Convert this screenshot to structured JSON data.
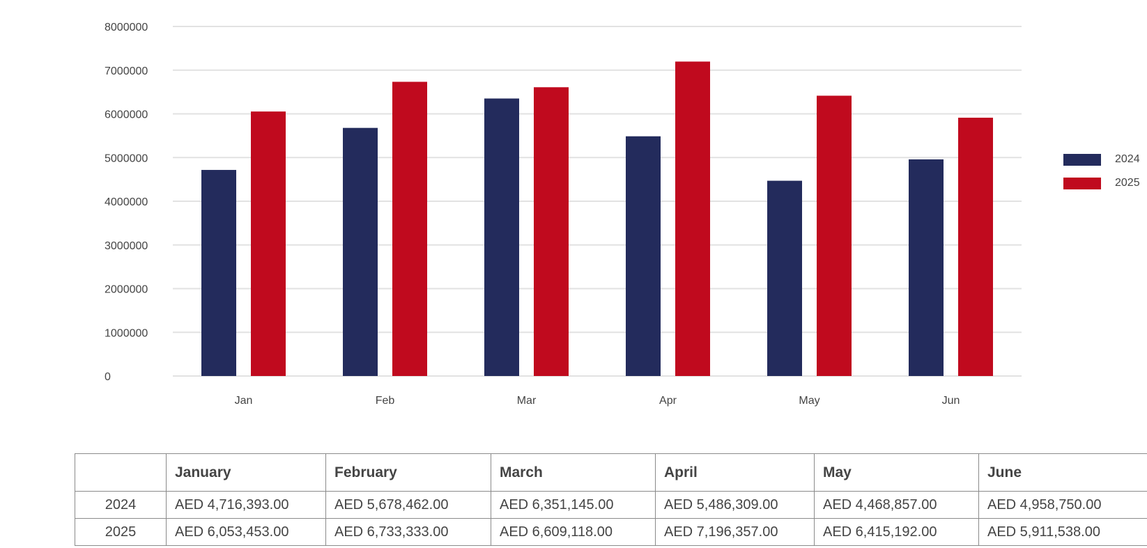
{
  "chart_data": {
    "type": "bar",
    "categories": [
      "Jan",
      "Feb",
      "Mar",
      "Apr",
      "May",
      "Jun"
    ],
    "series": [
      {
        "name": "2024",
        "color": "#232b5c",
        "values": [
          4716393,
          5678462,
          6351145,
          5486309,
          4468857,
          4958750
        ]
      },
      {
        "name": "2025",
        "color": "#c00a1e",
        "values": [
          6053453,
          6733333,
          6609118,
          7196357,
          6415192,
          5911538
        ]
      }
    ],
    "yticks": [
      "0",
      "1000000",
      "2000000",
      "3000000",
      "4000000",
      "5000000",
      "6000000",
      "7000000",
      "8000000"
    ],
    "ylim": [
      0,
      8000000
    ],
    "grid": true,
    "legend_position": "right"
  },
  "table": {
    "headers": [
      "",
      "January",
      "February",
      "March",
      "April",
      "May",
      "June"
    ],
    "rows": [
      {
        "year": "2024",
        "cells": [
          "AED 4,716,393.00",
          "AED 5,678,462.00",
          "AED 6,351,145.00",
          "AED 5,486,309.00",
          "AED 4,468,857.00",
          "AED 4,958,750.00"
        ]
      },
      {
        "year": "2025",
        "cells": [
          "AED 6,053,453.00",
          "AED 6,733,333.00",
          "AED 6,609,118.00",
          "AED 7,196,357.00",
          "AED 6,415,192.00",
          "AED 5,911,538.00"
        ]
      }
    ]
  }
}
